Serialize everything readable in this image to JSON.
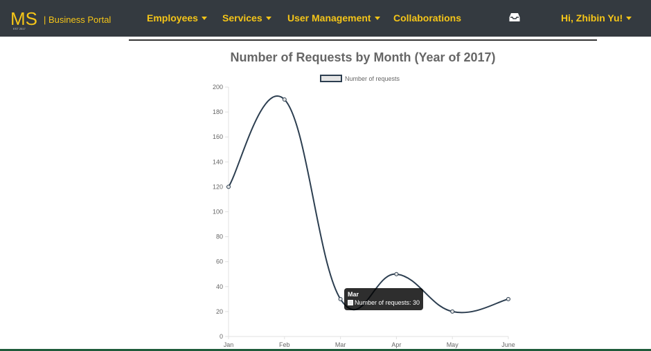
{
  "brand": {
    "logo_text": "MS",
    "logo_subtext": "EST 2017",
    "name": "| Business Portal"
  },
  "nav": {
    "items": [
      {
        "label": "Employees",
        "dropdown": true
      },
      {
        "label": "Services",
        "dropdown": true
      },
      {
        "label": "User Management",
        "dropdown": true
      },
      {
        "label": "Collaborations",
        "dropdown": false
      }
    ],
    "inbox_icon": "inbox-icon",
    "user_menu": "Hi, Zhibin Yu!"
  },
  "colors": {
    "navbar_bg": "#343a40",
    "accent": "#f5c518",
    "line": "#2c3e50"
  },
  "chart_data": {
    "type": "line",
    "title": "Number of Requests by Month (Year of 2017)",
    "categories": [
      "Jan",
      "Feb",
      "Mar",
      "Apr",
      "May",
      "June"
    ],
    "series": [
      {
        "name": "Number of requests",
        "values": [
          120,
          190,
          30,
          50,
          20,
          30
        ]
      }
    ],
    "ylim": [
      0,
      200
    ],
    "yticks": [
      0,
      20,
      40,
      60,
      80,
      100,
      120,
      140,
      160,
      180,
      200
    ],
    "legend": "top",
    "grid": false,
    "tooltip": {
      "title": "Mar",
      "label": "Number of requests: 30"
    }
  }
}
